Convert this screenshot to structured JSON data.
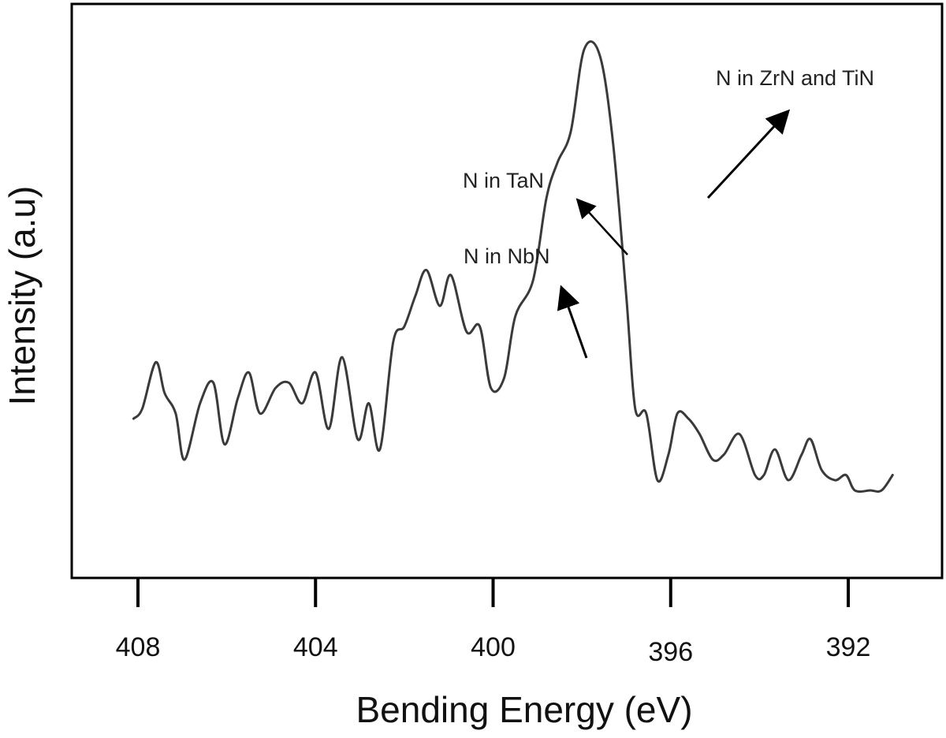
{
  "chart_data": {
    "type": "line",
    "xlabel": "Bending Energy (eV)",
    "ylabel": "Intensity (a.u)",
    "xlim": [
      408.7,
      390.6
    ],
    "x_reversed": true,
    "x_ticks": [
      408,
      404,
      400,
      396,
      392
    ],
    "y_ticks": [],
    "ylim": [
      0,
      100
    ],
    "grid": false,
    "series": [
      {
        "x": [
          408.1,
          407.9,
          407.6,
          407.4,
          407.15,
          406.95,
          406.6,
          406.3,
          406.05,
          405.75,
          405.5,
          405.25,
          404.9,
          404.6,
          404.3,
          404.0,
          403.7,
          403.4,
          403.05,
          402.8,
          402.55,
          402.25,
          402.0,
          401.75,
          401.5,
          401.2,
          400.95,
          400.6,
          400.3,
          400.05,
          399.75,
          399.5,
          399.1,
          398.8,
          398.55,
          398.25,
          397.95,
          397.6,
          397.3,
          397.0,
          396.8,
          396.55,
          396.3,
          396.05,
          395.85,
          395.6,
          395.35,
          395.05,
          394.8,
          394.45,
          394.1,
          393.9,
          393.65,
          393.35,
          393.05,
          392.85,
          392.6,
          392.3,
          392.05,
          391.85,
          391.5,
          391.25,
          391.0
        ],
        "y": [
          26,
          28,
          37,
          31,
          27,
          18,
          29,
          33,
          21,
          30,
          35,
          27,
          32,
          33,
          29,
          35,
          24,
          38,
          22,
          29,
          20,
          41,
          44,
          50,
          55,
          48,
          54,
          43,
          44,
          32,
          34,
          46,
          53,
          69,
          76,
          82,
          98,
          97,
          80,
          50,
          28,
          27,
          14,
          19,
          27,
          26,
          23,
          18,
          19,
          23,
          15,
          15,
          20,
          14,
          19,
          22,
          16,
          14,
          15,
          12,
          12,
          12,
          15
        ]
      }
    ],
    "annotations": [
      {
        "text": "N in ZrN and TiN"
      },
      {
        "text": "N in TaN"
      },
      {
        "text": "N in NbN"
      }
    ]
  }
}
